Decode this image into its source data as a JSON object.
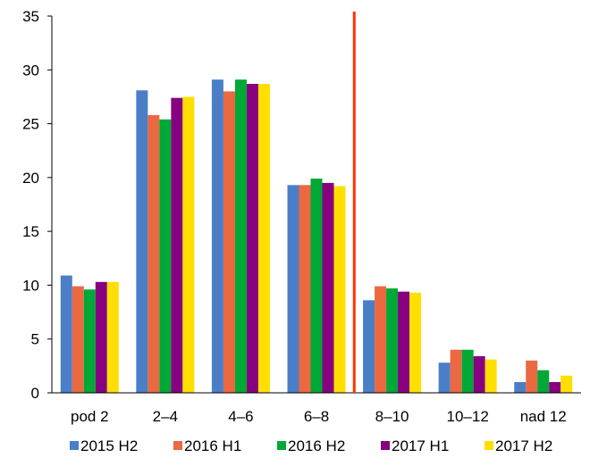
{
  "chart_data": {
    "type": "bar",
    "categories": [
      "pod 2",
      "2–4",
      "4–6",
      "6–8",
      "8–10",
      "10–12",
      "nad 12"
    ],
    "series": [
      {
        "name": "2015 H2",
        "color": "#4a7fc8",
        "values": [
          10.9,
          28.1,
          29.1,
          19.3,
          8.6,
          2.8,
          1.0
        ]
      },
      {
        "name": "2016 H1",
        "color": "#eb6841",
        "values": [
          9.9,
          25.8,
          28.0,
          19.3,
          9.9,
          4.0,
          3.0
        ]
      },
      {
        "name": "2016 H2",
        "color": "#00a835",
        "values": [
          9.6,
          25.4,
          29.1,
          19.9,
          9.7,
          4.0,
          2.1
        ]
      },
      {
        "name": "2017 H1",
        "color": "#86007f",
        "values": [
          10.3,
          27.4,
          28.7,
          19.5,
          9.4,
          3.4,
          1.0
        ]
      },
      {
        "name": "2017 H2",
        "color": "#ffde00",
        "values": [
          10.3,
          27.5,
          28.7,
          19.2,
          9.3,
          3.1,
          1.6
        ]
      }
    ],
    "ylim": [
      0,
      35
    ],
    "yticks": [
      0,
      5,
      10,
      15,
      20,
      25,
      30,
      35
    ],
    "grid": false,
    "legend_position": "bottom",
    "reference_line": {
      "between_categories": [
        "6–8",
        "8–10"
      ],
      "color": "#ff3300"
    }
  }
}
